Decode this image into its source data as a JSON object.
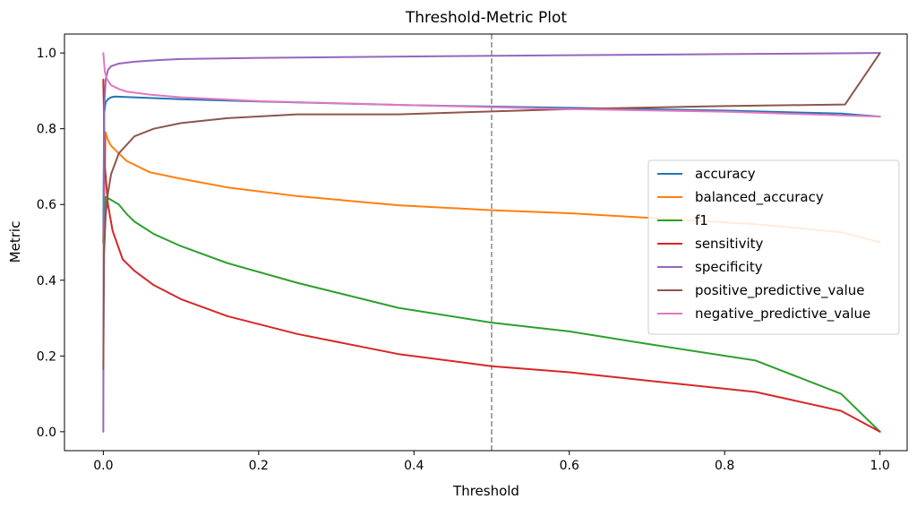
{
  "chart_data": {
    "type": "line",
    "title": "Threshold-Metric Plot",
    "xlabel": "Threshold",
    "ylabel": "Metric",
    "xlim": [
      -0.05,
      1.035
    ],
    "ylim": [
      -0.05,
      1.05
    ],
    "x_ticks": [
      0.0,
      0.2,
      0.4,
      0.6,
      0.8,
      1.0
    ],
    "x_tick_labels": [
      "0.0",
      "0.2",
      "0.4",
      "0.6",
      "0.8",
      "1.0"
    ],
    "y_ticks": [
      0.0,
      0.2,
      0.4,
      0.6,
      0.8,
      1.0
    ],
    "y_tick_labels": [
      "0.0",
      "0.2",
      "0.4",
      "0.6",
      "0.8",
      "1.0"
    ],
    "grid": false,
    "legend_position": "center-right",
    "reference_line": {
      "x": 0.5,
      "color": "#808080",
      "style": "dashed"
    },
    "series": [
      {
        "name": "accuracy",
        "color": "#1f77b4",
        "x": [
          0.0,
          0.001,
          0.003,
          0.006,
          0.01,
          0.015,
          0.025,
          0.05,
          0.1,
          0.2,
          0.4,
          0.6,
          0.8,
          0.95,
          1.0
        ],
        "y": [
          0.5,
          0.84,
          0.87,
          0.878,
          0.883,
          0.885,
          0.884,
          0.882,
          0.878,
          0.872,
          0.862,
          0.855,
          0.848,
          0.84,
          0.832
        ]
      },
      {
        "name": "balanced_accuracy",
        "color": "#ff7f0e",
        "x": [
          0.0,
          0.003,
          0.006,
          0.01,
          0.02,
          0.03,
          0.06,
          0.1,
          0.16,
          0.25,
          0.38,
          0.5,
          0.6,
          0.7,
          0.84,
          0.95,
          1.0
        ],
        "y": [
          0.5,
          0.79,
          0.77,
          0.755,
          0.735,
          0.715,
          0.685,
          0.668,
          0.645,
          0.622,
          0.598,
          0.585,
          0.577,
          0.565,
          0.548,
          0.527,
          0.5
        ]
      },
      {
        "name": "f1",
        "color": "#2ca02c",
        "x": [
          0.0,
          0.003,
          0.01,
          0.02,
          0.03,
          0.04,
          0.065,
          0.1,
          0.16,
          0.25,
          0.38,
          0.5,
          0.6,
          0.7,
          0.84,
          0.95,
          1.0
        ],
        "y": [
          0.5,
          0.62,
          0.612,
          0.6,
          0.575,
          0.555,
          0.522,
          0.49,
          0.445,
          0.393,
          0.327,
          0.288,
          0.265,
          0.232,
          0.188,
          0.1,
          0.0
        ]
      },
      {
        "name": "sensitivity",
        "color": "#d62728",
        "x": [
          0.0,
          0.002,
          0.006,
          0.012,
          0.025,
          0.04,
          0.065,
          0.1,
          0.16,
          0.25,
          0.38,
          0.5,
          0.6,
          0.7,
          0.84,
          0.95,
          1.0
        ],
        "y": [
          0.93,
          0.7,
          0.6,
          0.53,
          0.455,
          0.425,
          0.387,
          0.35,
          0.305,
          0.258,
          0.205,
          0.173,
          0.157,
          0.135,
          0.105,
          0.055,
          0.0
        ]
      },
      {
        "name": "specificity",
        "color": "#9467bd",
        "x": [
          0.0,
          0.0005,
          0.001,
          0.003,
          0.006,
          0.01,
          0.02,
          0.04,
          0.07,
          0.1,
          0.2,
          0.4,
          0.6,
          0.8,
          1.0
        ],
        "y": [
          0.0,
          0.6,
          0.85,
          0.93,
          0.955,
          0.965,
          0.972,
          0.977,
          0.981,
          0.984,
          0.987,
          0.991,
          0.994,
          0.997,
          1.0
        ]
      },
      {
        "name": "positive_predictive_value",
        "color": "#8c564b",
        "x": [
          0.0,
          0.001,
          0.003,
          0.006,
          0.01,
          0.02,
          0.04,
          0.065,
          0.1,
          0.16,
          0.25,
          0.38,
          0.6,
          0.8,
          0.955,
          1.0
        ],
        "y": [
          0.165,
          0.47,
          0.57,
          0.63,
          0.68,
          0.735,
          0.78,
          0.8,
          0.815,
          0.828,
          0.838,
          0.838,
          0.852,
          0.86,
          0.864,
          1.0
        ]
      },
      {
        "name": "negative_predictive_value",
        "color": "#e377c2",
        "x": [
          0.0,
          0.002,
          0.005,
          0.01,
          0.02,
          0.03,
          0.06,
          0.1,
          0.2,
          0.4,
          0.6,
          0.8,
          1.0
        ],
        "y": [
          1.0,
          0.95,
          0.93,
          0.915,
          0.905,
          0.898,
          0.89,
          0.883,
          0.873,
          0.862,
          0.852,
          0.845,
          0.832
        ]
      }
    ]
  }
}
